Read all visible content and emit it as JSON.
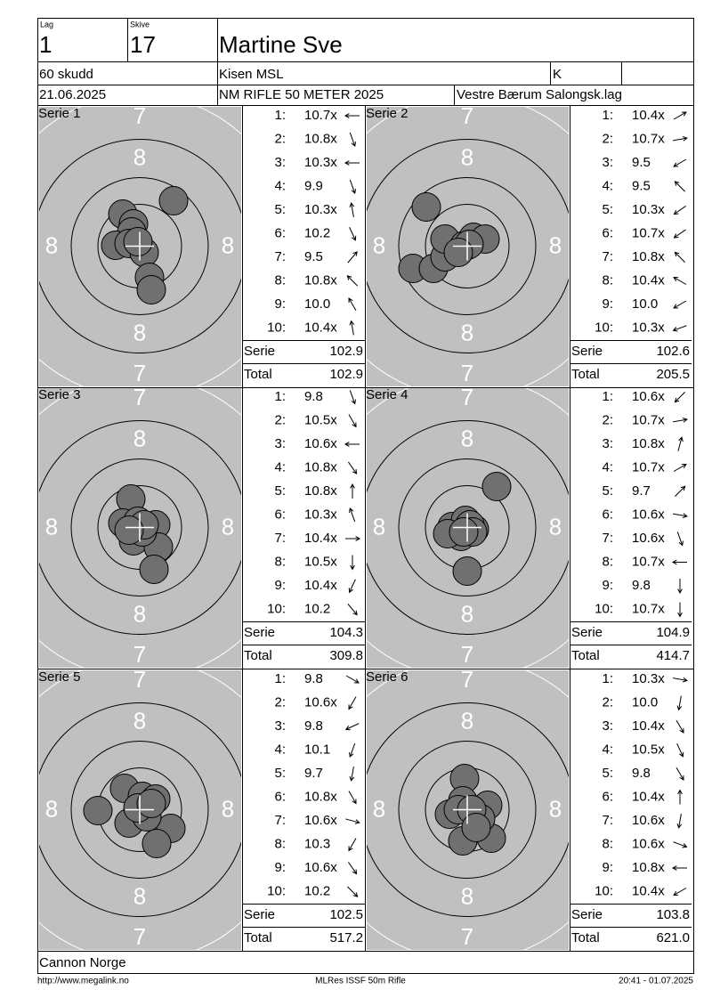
{
  "header": {
    "lag_label": "Lag",
    "lag": "1",
    "skive_label": "Skive",
    "skive": "17",
    "name": "Martine Sve",
    "shots": "60 skudd",
    "club": "Kisen MSL",
    "class": "K",
    "date": "21.06.2025",
    "event": "NM RIFLE 50 METER 2025",
    "organizer": "Vestre Bærum Salongsk.lag"
  },
  "ring_labels": {
    "seven": "7",
    "eight": "8"
  },
  "shot_labels": [
    "1:",
    "2:",
    "3:",
    "4:",
    "5:",
    "6:",
    "7:",
    "8:",
    "9:",
    "10:"
  ],
  "serie_label": "Serie",
  "total_label": "Total",
  "series": [
    {
      "title": "Serie 1",
      "scores": [
        "10.7x",
        "10.8x",
        "10.3x",
        "9.9",
        "10.3x",
        "10.2",
        "9.5",
        "10.8x",
        "10.0",
        "10.4x"
      ],
      "serie": "102.9",
      "total": "102.9"
    },
    {
      "title": "Serie 2",
      "scores": [
        "10.4x",
        "10.7x",
        "9.5",
        "9.5",
        "10.3x",
        "10.7x",
        "10.8x",
        "10.4x",
        "10.0",
        "10.3x"
      ],
      "serie": "102.6",
      "total": "205.5"
    },
    {
      "title": "Serie 3",
      "scores": [
        "9.8",
        "10.5x",
        "10.6x",
        "10.8x",
        "10.8x",
        "10.3x",
        "10.4x",
        "10.5x",
        "10.4x",
        "10.2"
      ],
      "serie": "104.3",
      "total": "309.8"
    },
    {
      "title": "Serie 4",
      "scores": [
        "10.6x",
        "10.7x",
        "10.8x",
        "10.7x",
        "9.7",
        "10.6x",
        "10.6x",
        "10.7x",
        "9.8",
        "10.7x"
      ],
      "serie": "104.9",
      "total": "414.7"
    },
    {
      "title": "Serie 5",
      "scores": [
        "9.8",
        "10.6x",
        "9.8",
        "10.1",
        "9.7",
        "10.8x",
        "10.6x",
        "10.3",
        "10.6x",
        "10.2"
      ],
      "serie": "102.5",
      "total": "517.2"
    },
    {
      "title": "Serie 6",
      "scores": [
        "10.3x",
        "10.0",
        "10.4x",
        "10.5x",
        "9.8",
        "10.4x",
        "10.6x",
        "10.6x",
        "10.8x",
        "10.4x"
      ],
      "serie": "103.8",
      "total": "621.0"
    }
  ],
  "footer": {
    "sponsor": "Cannon Norge",
    "url": "http://www.megalink.no",
    "software": "MLRes ISSF 50m Rifle",
    "timestamp": "20:41 - 01.07.2025"
  }
}
